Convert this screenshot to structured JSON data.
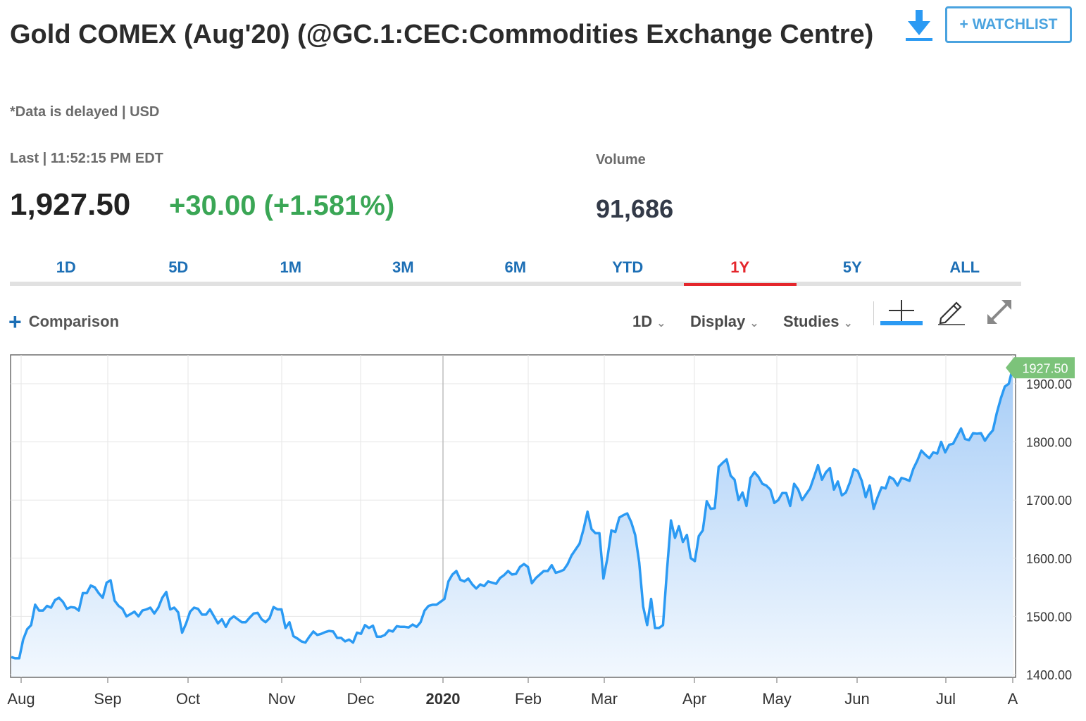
{
  "header": {
    "title": "Gold COMEX (Aug'20) (@GC.1:CEC:Commodities Exchange Centre)",
    "subtitle": "*Data is delayed | USD",
    "download_icon": "download-icon",
    "watchlist_label": "+ WATCHLIST"
  },
  "quote": {
    "last_label": "Last | 11:52:15 PM EDT",
    "last_price": "1,927.50",
    "change": "+30.00 (+1.581%)",
    "change_color": "#3aa655",
    "volume_label": "Volume",
    "volume_value": "91,686"
  },
  "range_tabs": [
    {
      "label": "1D"
    },
    {
      "label": "5D"
    },
    {
      "label": "1M"
    },
    {
      "label": "3M"
    },
    {
      "label": "6M"
    },
    {
      "label": "YTD"
    },
    {
      "label": "1Y"
    },
    {
      "label": "5Y"
    },
    {
      "label": "ALL"
    }
  ],
  "active_tab": "1Y",
  "toolbar": {
    "comparison_label": "Comparison",
    "interval_label": "1D",
    "display_label": "Display",
    "studies_label": "Studies",
    "crosshair_icon": "crosshair-icon",
    "draw_icon": "pencil-icon",
    "expand_icon": "expand-icon"
  },
  "chart_data": {
    "type": "area",
    "series": [
      {
        "values": [
          1430,
          1428,
          1428,
          1460,
          1478,
          1485,
          1520,
          1510,
          1510,
          1518,
          1515,
          1528,
          1532,
          1525,
          1513,
          1516,
          1515,
          1510,
          1540,
          1540,
          1553,
          1550,
          1540,
          1532,
          1558,
          1562,
          1527,
          1518,
          1513,
          1500,
          1504,
          1508,
          1500,
          1510,
          1512,
          1515,
          1505,
          1515,
          1532,
          1542,
          1512,
          1515,
          1507,
          1472,
          1488,
          1508,
          1515,
          1513,
          1503,
          1503,
          1512,
          1500,
          1488,
          1495,
          1482,
          1495,
          1500,
          1495,
          1490,
          1490,
          1498,
          1505,
          1506,
          1495,
          1490,
          1497,
          1516,
          1512,
          1512,
          1480,
          1490,
          1466,
          1462,
          1457,
          1455,
          1465,
          1474,
          1468,
          1470,
          1473,
          1475,
          1474,
          1463,
          1463,
          1457,
          1460,
          1455,
          1472,
          1470,
          1485,
          1480,
          1484,
          1465,
          1465,
          1468,
          1476,
          1474,
          1483,
          1482,
          1482,
          1481,
          1486,
          1482,
          1490,
          1510,
          1518,
          1520,
          1520,
          1525,
          1530,
          1560,
          1572,
          1578,
          1563,
          1560,
          1565,
          1555,
          1548,
          1555,
          1552,
          1560,
          1558,
          1556,
          1566,
          1571,
          1578,
          1572,
          1573,
          1585,
          1590,
          1585,
          1557,
          1566,
          1572,
          1578,
          1578,
          1588,
          1575,
          1577,
          1580,
          1590,
          1605,
          1615,
          1625,
          1650,
          1680,
          1650,
          1643,
          1643,
          1565,
          1600,
          1648,
          1645,
          1670,
          1674,
          1677,
          1662,
          1640,
          1593,
          1517,
          1485,
          1530,
          1480,
          1480,
          1485,
          1580,
          1665,
          1635,
          1655,
          1628,
          1640,
          1600,
          1595,
          1638,
          1648,
          1698,
          1685,
          1686,
          1757,
          1764,
          1770,
          1742,
          1735,
          1700,
          1713,
          1690,
          1738,
          1748,
          1740,
          1728,
          1725,
          1718,
          1695,
          1700,
          1712,
          1712,
          1690,
          1728,
          1718,
          1700,
          1710,
          1720,
          1740,
          1760,
          1735,
          1748,
          1755,
          1718,
          1732,
          1708,
          1713,
          1730,
          1753,
          1750,
          1733,
          1705,
          1725,
          1685,
          1705,
          1722,
          1720,
          1740,
          1736,
          1725,
          1738,
          1736,
          1733,
          1754,
          1768,
          1785,
          1778,
          1772,
          1782,
          1780,
          1800,
          1782,
          1795,
          1797,
          1810,
          1823,
          1805,
          1803,
          1815,
          1814,
          1815,
          1802,
          1812,
          1820,
          1850,
          1875,
          1895,
          1900,
          1927.5
        ]
      }
    ],
    "x_tick_labels": [
      "Aug",
      "Sep",
      "Oct",
      "Nov",
      "Dec",
      "2020",
      "Feb",
      "Mar",
      "Apr",
      "May",
      "Jun",
      "Jul",
      "A"
    ],
    "y_ticks": [
      1400,
      1500,
      1600,
      1700,
      1800,
      1900
    ],
    "y_tick_labels": [
      "1400.00",
      "1500.00",
      "1600.00",
      "1700.00",
      "1800.00",
      "1900.00"
    ],
    "ylim": [
      1400,
      1940
    ],
    "last_value_label": "1927.50",
    "line_color": "#2b9af3",
    "marker_color": "#7cc37a",
    "grid": true
  }
}
